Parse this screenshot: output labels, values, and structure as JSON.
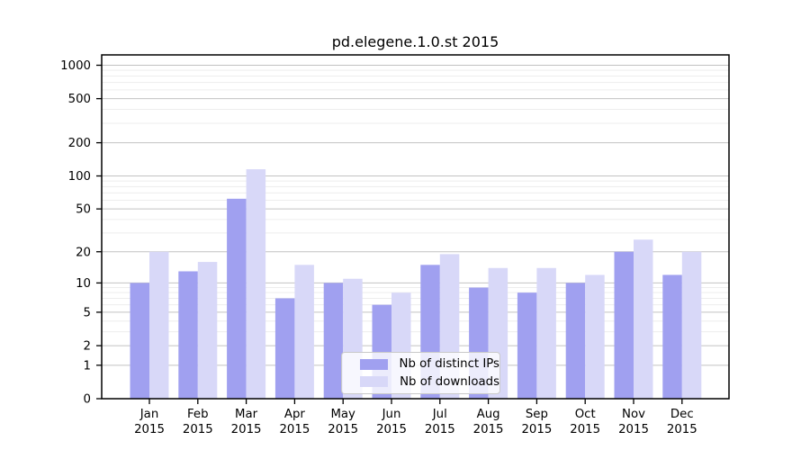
{
  "chart_data": {
    "type": "bar",
    "title": "pd.elegene.1.0.st 2015",
    "categories": [
      "Jan",
      "Feb",
      "Mar",
      "Apr",
      "May",
      "Jun",
      "Jul",
      "Aug",
      "Sep",
      "Oct",
      "Nov",
      "Dec"
    ],
    "category_year": "2015",
    "series": [
      {
        "name": "Nb of distinct IPs",
        "color": "#a0a0f0",
        "values": [
          10,
          13,
          62,
          7,
          10,
          6,
          15,
          9,
          8,
          10,
          20,
          12
        ]
      },
      {
        "name": "Nb of downloads",
        "color": "#d8d8f8",
        "values": [
          20,
          16,
          115,
          15,
          11,
          8,
          19,
          14,
          14,
          12,
          26,
          20
        ]
      }
    ],
    "y_axis": {
      "scale": "log-like (position proportional to log10(value+1))",
      "ticks": [
        0,
        1,
        2,
        5,
        10,
        20,
        50,
        100,
        200,
        500,
        1000
      ],
      "minor_gridlines": [
        3,
        4,
        6,
        7,
        8,
        9,
        30,
        40,
        60,
        70,
        80,
        90,
        300,
        400,
        600,
        700,
        800,
        900
      ],
      "range": [
        0,
        1000
      ]
    },
    "grid": true,
    "legend": {
      "position": "inside-bottom-center",
      "entries": [
        "Nb of distinct IPs",
        "Nb of downloads"
      ]
    },
    "colors": {
      "frame": "#000000",
      "major_grid": "#c2c2c2",
      "minor_grid": "#ededed",
      "background": "#ffffff"
    }
  }
}
